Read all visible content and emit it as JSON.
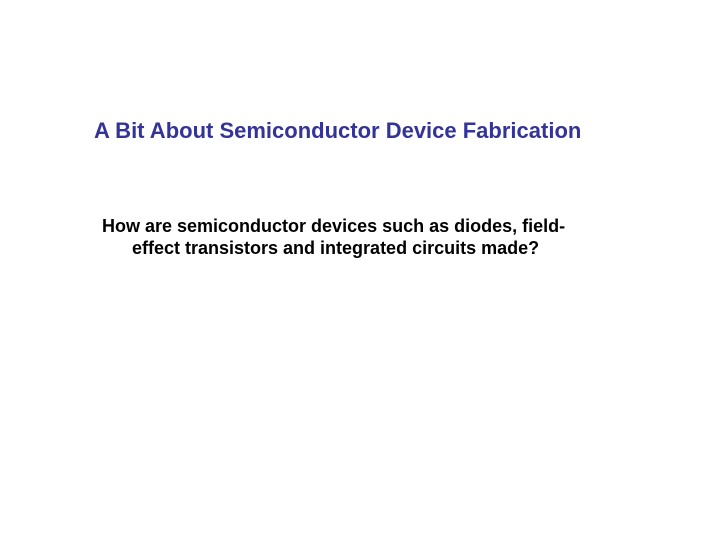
{
  "slide": {
    "title": "A Bit About Semiconductor Device Fabrication",
    "body_line1": "How are semiconductor devices such as diodes, field-",
    "body_line2": "effect transistors and integrated circuits made?"
  },
  "styling": {
    "title_color": "#333399",
    "title_fontsize": 22,
    "title_fontweight": "bold",
    "body_color": "#000000",
    "body_fontsize": 18,
    "body_fontweight": "bold",
    "background_color": "#ffffff",
    "font_family": "Arial"
  }
}
